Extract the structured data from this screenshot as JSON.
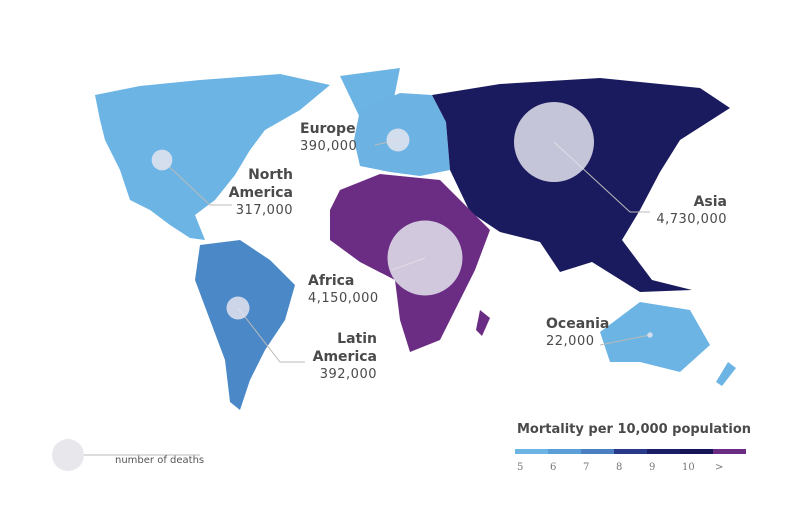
{
  "map": {
    "regions": [
      {
        "name": "North America",
        "deaths": 317000,
        "deaths_label": "317,000",
        "color": "#6cb4e4"
      },
      {
        "name": "Europe",
        "deaths": 390000,
        "deaths_label": "390,000",
        "color": "#6cb2e2"
      },
      {
        "name": "Asia",
        "deaths": 4730000,
        "deaths_label": "4,730,000",
        "color": "#1a1a5e"
      },
      {
        "name": "Africa",
        "deaths": 4150000,
        "deaths_label": "4,150,000",
        "color": "#6a2d83"
      },
      {
        "name": "Latin America",
        "deaths": 392000,
        "deaths_label": "392,000",
        "color": "#4a88c7"
      },
      {
        "name": "Oceania",
        "deaths": 22000,
        "deaths_label": "22,000",
        "color": "#6cb4e4"
      }
    ],
    "size_legend_label": "number of deaths",
    "legend": {
      "title": "Mortality per 10,000 population",
      "ticks": [
        5,
        6,
        7,
        8,
        9,
        10,
        ">"
      ],
      "colors": [
        "#6cb4e4",
        "#5a9fd8",
        "#4a7fc0",
        "#2a3a8a",
        "#1a1f66",
        "#141457",
        "#6a2d83"
      ]
    }
  }
}
